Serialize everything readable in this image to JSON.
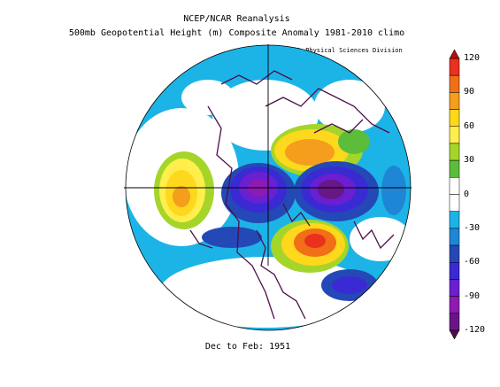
{
  "title_line1": "NCEP/NCAR Reanalysis",
  "title_line2": "500mb Geopotential Height (m) Composite Anomaly 1981-2010 climo",
  "credit": "NOAA/ESRL Physical Sciences Division",
  "period": "Dec to Feb: 1951",
  "colorbar": {
    "ticks": [
      "120",
      "90",
      "60",
      "30",
      "0",
      "-30",
      "-60",
      "-90",
      "-120"
    ],
    "bins": [
      {
        "color": "#e8321e"
      },
      {
        "color": "#f06f17"
      },
      {
        "color": "#f59d1c"
      },
      {
        "color": "#fdd81c"
      },
      {
        "color": "#ffee4c"
      },
      {
        "color": "#a6d52a"
      },
      {
        "color": "#5cbd3b"
      },
      {
        "color": "#ffffff"
      },
      {
        "color": "#ffffff"
      },
      {
        "color": "#1cb4e7"
      },
      {
        "color": "#1f86d6"
      },
      {
        "color": "#2548b7"
      },
      {
        "color": "#3a2ad3"
      },
      {
        "color": "#6a1fd1"
      },
      {
        "color": "#8e1ab2"
      },
      {
        "color": "#681784"
      }
    ]
  }
}
